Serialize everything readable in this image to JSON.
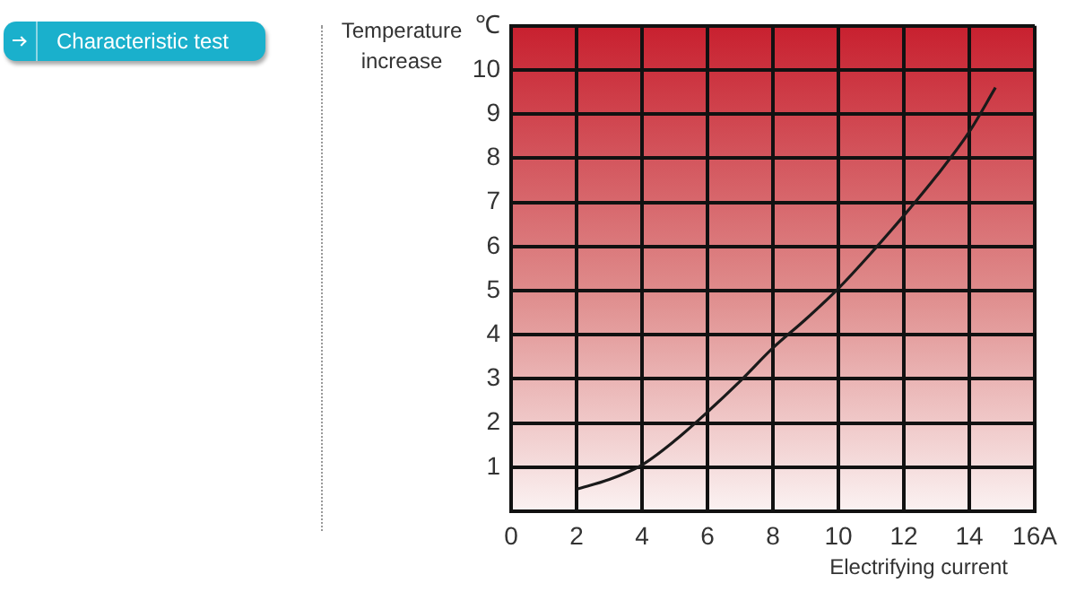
{
  "chart_data": {
    "type": "line",
    "title": "Characteristic test",
    "ylabel": "Temperature\nincrease",
    "xlabel": "Electrifying current",
    "x": [
      2,
      3,
      4,
      5,
      6,
      7,
      8,
      9,
      10,
      11,
      12,
      13,
      14,
      14.8
    ],
    "series": [
      {
        "color": "#1a1a1a",
        "values": [
          0.5,
          0.72,
          1.05,
          1.6,
          2.25,
          2.95,
          3.7,
          4.35,
          5.05,
          5.85,
          6.7,
          7.6,
          8.6,
          9.6
        ]
      }
    ],
    "xlim": [
      0,
      16
    ],
    "xticks": [
      0,
      2,
      4,
      6,
      8,
      10,
      12,
      14,
      {
        "value": 16,
        "label": "16A"
      }
    ],
    "ylim": [
      0,
      11
    ],
    "yticks": [
      {
        "value": 0,
        "label": null
      },
      1,
      2,
      3,
      4,
      5,
      6,
      7,
      8,
      9,
      10,
      {
        "value": 11,
        "label": "℃"
      }
    ],
    "grid": true,
    "legend": false,
    "marker": "none",
    "line_style": "solid"
  }
}
